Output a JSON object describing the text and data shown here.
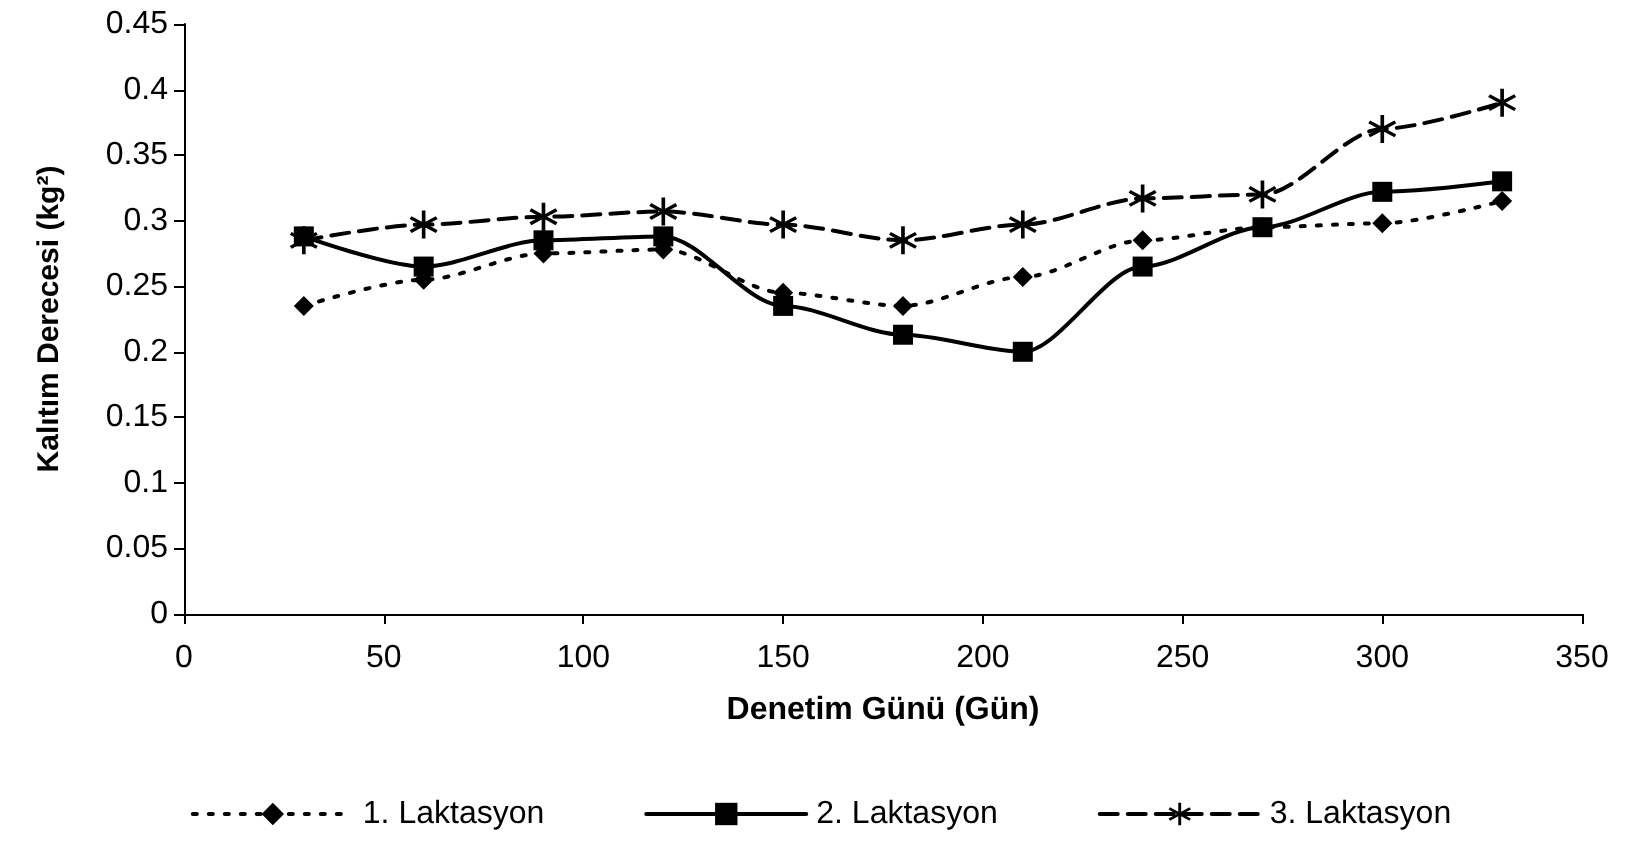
{
  "chart_data": {
    "type": "line",
    "xlabel": "Denetim Günü (Gün)",
    "ylabel": "Kalıtım Derecesi (kg²)",
    "x": [
      30,
      60,
      90,
      120,
      150,
      180,
      210,
      240,
      270,
      300,
      330
    ],
    "series": [
      {
        "name": "1. Laktasyon",
        "color": "#000000",
        "marker": "diamond",
        "line_style": "dotted",
        "values": [
          0.235,
          0.255,
          0.275,
          0.278,
          0.245,
          0.235,
          0.257,
          0.285,
          0.295,
          0.298,
          0.315
        ]
      },
      {
        "name": "2. Laktasyon",
        "color": "#000000",
        "marker": "square",
        "line_style": "solid",
        "values": [
          0.288,
          0.265,
          0.285,
          0.288,
          0.235,
          0.213,
          0.2,
          0.265,
          0.295,
          0.322,
          0.33
        ]
      },
      {
        "name": "3. Laktasyon",
        "color": "#000000",
        "marker": "star",
        "line_style": "dashed",
        "values": [
          0.285,
          0.297,
          0.303,
          0.307,
          0.297,
          0.285,
          0.297,
          0.317,
          0.32,
          0.37,
          0.39
        ]
      }
    ],
    "xlim": [
      0,
      350
    ],
    "xticks": [
      0,
      50,
      100,
      150,
      200,
      250,
      300,
      350
    ],
    "ylim": [
      0,
      0.45
    ],
    "yticks": [
      0,
      0.05,
      0.1,
      0.15,
      0.2,
      0.25,
      0.3,
      0.35,
      0.4,
      0.45
    ],
    "grid": false,
    "legend": "bottom"
  }
}
